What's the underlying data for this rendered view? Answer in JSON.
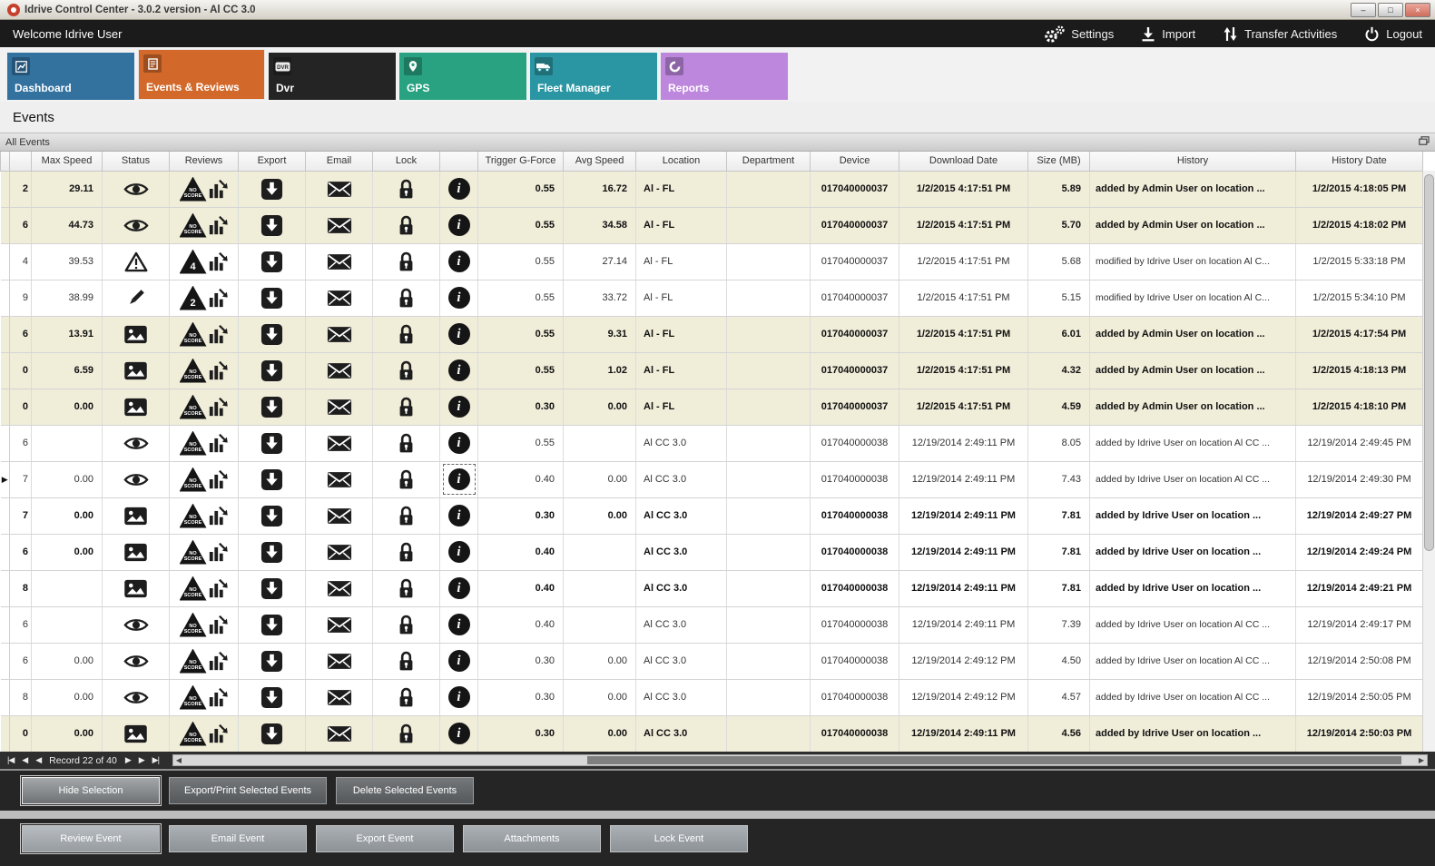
{
  "window": {
    "title": "Idrive Control Center - 3.0.2 version - Al CC 3.0",
    "controls": {
      "minimize": "–",
      "maximize": "□",
      "close": "×"
    }
  },
  "topbar": {
    "welcome": "Welcome Idrive User",
    "actions": [
      {
        "label": "Settings"
      },
      {
        "label": "Import"
      },
      {
        "label": "Transfer Activities"
      },
      {
        "label": "Logout"
      }
    ]
  },
  "tabs": [
    {
      "label": "Dashboard",
      "color": "#33719f"
    },
    {
      "label": "Events & Reviews",
      "color": "#d2692b",
      "active": true
    },
    {
      "label": "Dvr",
      "color": "#242424",
      "icon_text": "DVR"
    },
    {
      "label": "GPS",
      "color": "#29a282"
    },
    {
      "label": "Fleet Manager",
      "color": "#2b96a3"
    },
    {
      "label": "Reports",
      "color": "#bd87de"
    }
  ],
  "page": {
    "title": "Events",
    "panel_title": "All Events"
  },
  "table": {
    "columns": [
      "Max Speed",
      "Status",
      "Reviews",
      "Export",
      "Email",
      "Lock",
      "",
      "Trigger G-Force",
      "Avg Speed",
      "Location",
      "Department",
      "Device",
      "Download Date",
      "Size (MB)",
      "History",
      "History Date"
    ],
    "rows": [
      {
        "edge": "2",
        "max_speed": "29.11",
        "status": "eye",
        "score": "NO SCORE",
        "trigger": "0.55",
        "avg": "16.72",
        "location": "Al - FL",
        "department": "",
        "device": "017040000037",
        "download_date": "1/2/2015 4:17:51 PM",
        "size": "5.89",
        "history": "added by Admin User on location ...",
        "history_date": "1/2/2015 4:18:05 PM",
        "bold": true,
        "shaded": true,
        "selected": false
      },
      {
        "edge": "6",
        "max_speed": "44.73",
        "status": "eye",
        "score": "NO SCORE",
        "trigger": "0.55",
        "avg": "34.58",
        "location": "Al - FL",
        "department": "",
        "device": "017040000037",
        "download_date": "1/2/2015 4:17:51 PM",
        "size": "5.70",
        "history": "added by Admin User on location ...",
        "history_date": "1/2/2015 4:18:02 PM",
        "bold": true,
        "shaded": true,
        "selected": false
      },
      {
        "edge": "4",
        "max_speed": "39.53",
        "status": "warning",
        "score": "4",
        "trigger": "0.55",
        "avg": "27.14",
        "location": "Al - FL",
        "department": "",
        "device": "017040000037",
        "download_date": "1/2/2015 4:17:51 PM",
        "size": "5.68",
        "history": "modified by Idrive User on location Al C...",
        "history_date": "1/2/2015 5:33:18 PM",
        "bold": false,
        "shaded": false,
        "selected": false
      },
      {
        "edge": "9",
        "max_speed": "38.99",
        "status": "pencil",
        "score": "2",
        "trigger": "0.55",
        "avg": "33.72",
        "location": "Al - FL",
        "department": "",
        "device": "017040000037",
        "download_date": "1/2/2015 4:17:51 PM",
        "size": "5.15",
        "history": "modified by Idrive User on location Al C...",
        "history_date": "1/2/2015 5:34:10 PM",
        "bold": false,
        "shaded": false,
        "selected": false
      },
      {
        "edge": "6",
        "max_speed": "13.91",
        "status": "image",
        "score": "NO SCORE",
        "trigger": "0.55",
        "avg": "9.31",
        "location": "Al - FL",
        "department": "",
        "device": "017040000037",
        "download_date": "1/2/2015 4:17:51 PM",
        "size": "6.01",
        "history": "added by Admin User on location ...",
        "history_date": "1/2/2015 4:17:54 PM",
        "bold": true,
        "shaded": true,
        "selected": false
      },
      {
        "edge": "0",
        "max_speed": "6.59",
        "status": "image",
        "score": "NO SCORE",
        "trigger": "0.55",
        "avg": "1.02",
        "location": "Al - FL",
        "department": "",
        "device": "017040000037",
        "download_date": "1/2/2015 4:17:51 PM",
        "size": "4.32",
        "history": "added by Admin User on location ...",
        "history_date": "1/2/2015 4:18:13 PM",
        "bold": true,
        "shaded": true,
        "selected": false
      },
      {
        "edge": "0",
        "max_speed": "0.00",
        "status": "image",
        "score": "NO SCORE",
        "trigger": "0.30",
        "avg": "0.00",
        "location": "Al - FL",
        "department": "",
        "device": "017040000037",
        "download_date": "1/2/2015 4:17:51 PM",
        "size": "4.59",
        "history": "added by Admin User on location ...",
        "history_date": "1/2/2015 4:18:10 PM",
        "bold": true,
        "shaded": true,
        "selected": false
      },
      {
        "edge": "6",
        "max_speed": "",
        "status": "eye",
        "score": "NO SCORE",
        "trigger": "0.55",
        "avg": "",
        "location": "Al CC 3.0",
        "department": "",
        "device": "017040000038",
        "download_date": "12/19/2014 2:49:11 PM",
        "size": "8.05",
        "history": "added by Idrive User on location Al CC ...",
        "history_date": "12/19/2014 2:49:45 PM",
        "bold": false,
        "shaded": false,
        "selected": false
      },
      {
        "edge": "7",
        "max_speed": "0.00",
        "status": "eye",
        "score": "NO SCORE",
        "trigger": "0.40",
        "avg": "0.00",
        "location": "Al CC 3.0",
        "department": "",
        "device": "017040000038",
        "download_date": "12/19/2014 2:49:11 PM",
        "size": "7.43",
        "history": "added by Idrive User on location Al CC ...",
        "history_date": "12/19/2014 2:49:30 PM",
        "bold": false,
        "shaded": false,
        "selected": true
      },
      {
        "edge": "7",
        "max_speed": "0.00",
        "status": "image",
        "score": "NO SCORE",
        "trigger": "0.30",
        "avg": "0.00",
        "location": "Al CC 3.0",
        "department": "",
        "device": "017040000038",
        "download_date": "12/19/2014 2:49:11 PM",
        "size": "7.81",
        "history": "added by Idrive User on location ...",
        "history_date": "12/19/2014 2:49:27 PM",
        "bold": true,
        "shaded": false,
        "selected": false
      },
      {
        "edge": "6",
        "max_speed": "0.00",
        "status": "image",
        "score": "NO SCORE",
        "trigger": "0.40",
        "avg": "",
        "location": "Al CC 3.0",
        "department": "",
        "device": "017040000038",
        "download_date": "12/19/2014 2:49:11 PM",
        "size": "7.81",
        "history": "added by Idrive User on location ...",
        "history_date": "12/19/2014 2:49:24 PM",
        "bold": true,
        "shaded": false,
        "selected": false
      },
      {
        "edge": "8",
        "max_speed": "",
        "status": "image",
        "score": "NO SCORE",
        "trigger": "0.40",
        "avg": "",
        "location": "Al CC 3.0",
        "department": "",
        "device": "017040000038",
        "download_date": "12/19/2014 2:49:11 PM",
        "size": "7.81",
        "history": "added by Idrive User on location ...",
        "history_date": "12/19/2014 2:49:21 PM",
        "bold": true,
        "shaded": false,
        "selected": false
      },
      {
        "edge": "6",
        "max_speed": "",
        "status": "eye",
        "score": "NO SCORE",
        "trigger": "0.40",
        "avg": "",
        "location": "Al CC 3.0",
        "department": "",
        "device": "017040000038",
        "download_date": "12/19/2014 2:49:11 PM",
        "size": "7.39",
        "history": "added by Idrive User on location Al CC ...",
        "history_date": "12/19/2014 2:49:17 PM",
        "bold": false,
        "shaded": false,
        "selected": false
      },
      {
        "edge": "6",
        "max_speed": "0.00",
        "status": "eye",
        "score": "NO SCORE",
        "trigger": "0.30",
        "avg": "0.00",
        "location": "Al CC 3.0",
        "department": "",
        "device": "017040000038",
        "download_date": "12/19/2014 2:49:12 PM",
        "size": "4.50",
        "history": "added by Idrive User on location Al CC ...",
        "history_date": "12/19/2014 2:50:08 PM",
        "bold": false,
        "shaded": false,
        "selected": false
      },
      {
        "edge": "8",
        "max_speed": "0.00",
        "status": "eye",
        "score": "NO SCORE",
        "trigger": "0.30",
        "avg": "0.00",
        "location": "Al CC 3.0",
        "department": "",
        "device": "017040000038",
        "download_date": "12/19/2014 2:49:12 PM",
        "size": "4.57",
        "history": "added by Idrive User on location Al CC ...",
        "history_date": "12/19/2014 2:50:05 PM",
        "bold": false,
        "shaded": false,
        "selected": false
      },
      {
        "edge": "0",
        "max_speed": "0.00",
        "status": "image",
        "score": "NO SCORE",
        "trigger": "0.30",
        "avg": "0.00",
        "location": "Al CC 3.0",
        "department": "",
        "device": "017040000038",
        "download_date": "12/19/2014 2:49:11 PM",
        "size": "4.56",
        "history": "added by Idrive User on location ...",
        "history_date": "12/19/2014 2:50:03 PM",
        "bold": true,
        "shaded": true,
        "selected": false
      }
    ]
  },
  "pager": {
    "first": "|◀",
    "prev": "◀",
    "prev2": "◀",
    "record_label": "Record 22 of 40",
    "next": "▶",
    "next2": "▶",
    "last": "▶|"
  },
  "action_bars": {
    "selection": [
      {
        "label": "Hide Selection",
        "focused": true
      },
      {
        "label": "Export/Print Selected Events"
      },
      {
        "label": "Delete Selected  Events"
      }
    ],
    "event": [
      {
        "label": "Review Event",
        "focused": true
      },
      {
        "label": "Email Event"
      },
      {
        "label": "Export Event"
      },
      {
        "label": "Attachments"
      },
      {
        "label": "Lock Event"
      }
    ]
  }
}
